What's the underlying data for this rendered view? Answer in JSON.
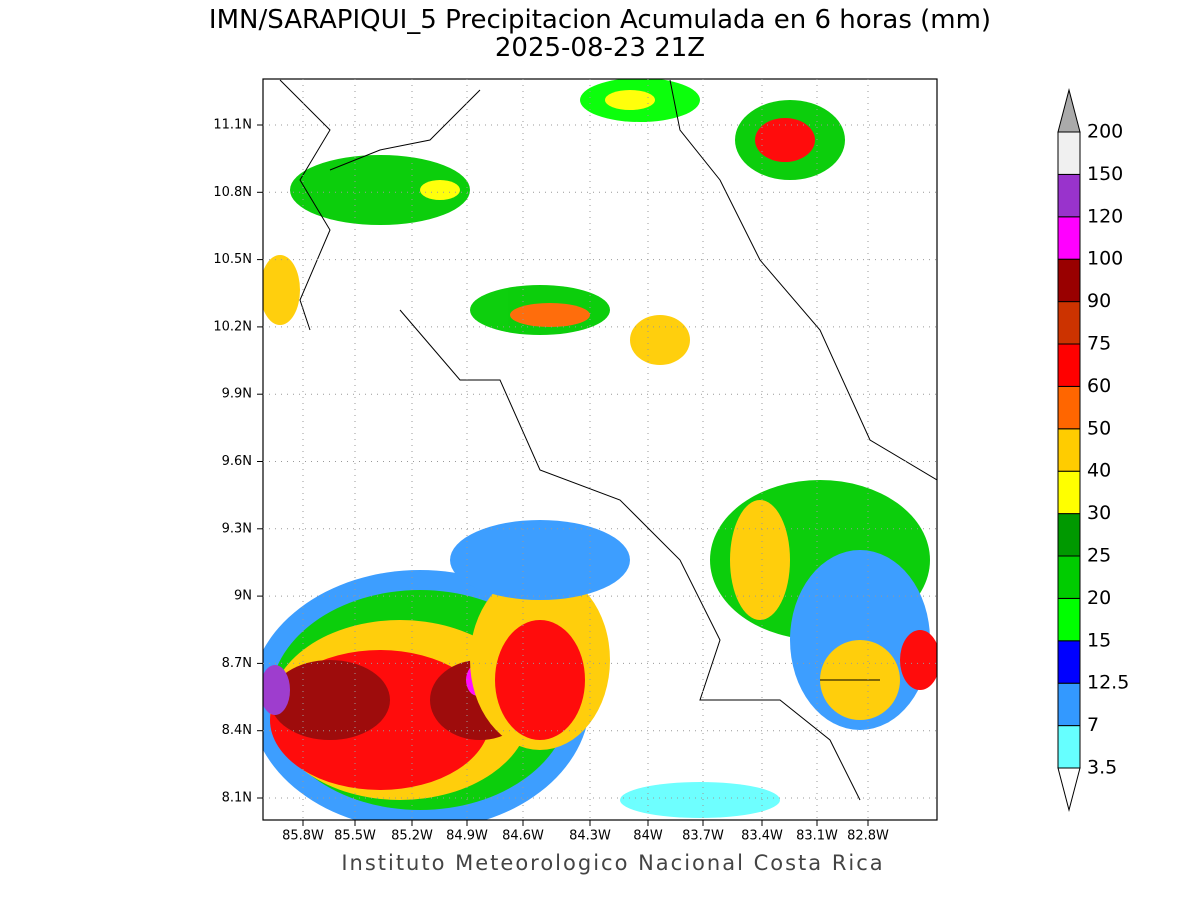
{
  "header": {
    "title": "IMN/SARAPIQUI_5 Precipitacion Acumulada en 6 horas (mm)",
    "subtitle": "2025-08-23 21Z"
  },
  "map": {
    "lat_labels": [
      "11.1N",
      "10.8N",
      "10.5N",
      "10.2N",
      "9.9N",
      "9.6N",
      "9.3N",
      "9N",
      "8.7N",
      "8.4N",
      "8.1N"
    ],
    "lon_labels": [
      "85.8W",
      "85.5W",
      "85.2W",
      "84.9W",
      "84.6W",
      "84.3W",
      "84W",
      "83.7W",
      "83.4W",
      "83.1W",
      "82.8W"
    ]
  },
  "colorbar": {
    "labels": [
      "3.5",
      "7",
      "12.5",
      "15",
      "20",
      "25",
      "30",
      "40",
      "50",
      "60",
      "75",
      "90",
      "100",
      "120",
      "150",
      "200"
    ],
    "colors": [
      "#66ffff",
      "#3399ff",
      "#0000ff",
      "#00ff00",
      "#00cc00",
      "#009900",
      "#ffff00",
      "#ffcc00",
      "#ff6600",
      "#ff0000",
      "#cc3300",
      "#990000",
      "#ff00ff",
      "#9933cc",
      "#f0f0f0"
    ],
    "under_color": "#ffffff",
    "over_color": "#aaaaaa"
  },
  "footer": "Instituto Meteorologico Nacional Costa Rica"
}
